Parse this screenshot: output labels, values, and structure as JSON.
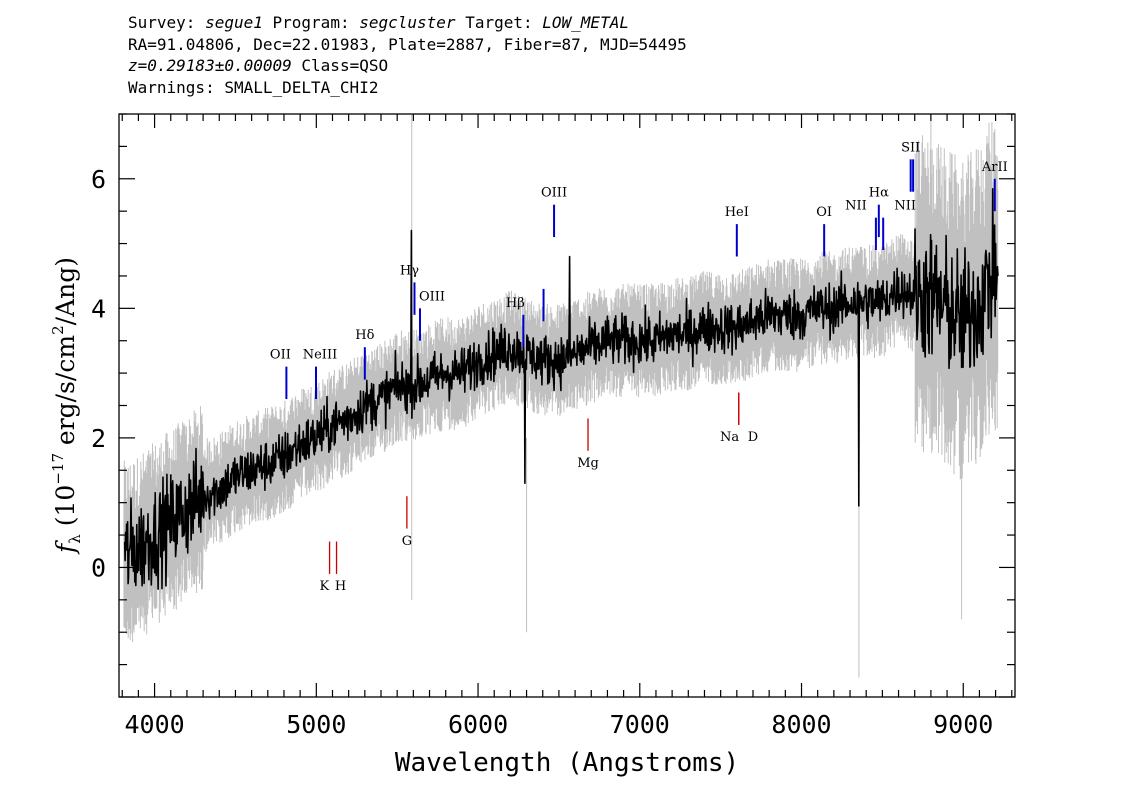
{
  "header": {
    "line1": {
      "survey_label": "Survey:",
      "survey": "segue1",
      "program_label": "Program:",
      "program": "segcluster",
      "target_label": "Target:",
      "target": "LOW_METAL"
    },
    "line2": "RA=91.04806, Dec=22.01983, Plate=2887, Fiber=87, MJD=54495",
    "line3": {
      "z": "z=0.29183±0.00009",
      "class": "Class=QSO"
    },
    "line4": "Warnings: SMALL_DELTA_CHI2"
  },
  "chart_data": {
    "type": "line",
    "xlabel": "Wavelength (Angstroms)",
    "ylabel": "f_λ (10^-17 erg/s/cm²/Ang)",
    "xlim": [
      3780,
      9320
    ],
    "ylim": [
      -2.0,
      7.0
    ],
    "xticks": [
      "4000",
      "5000",
      "6000",
      "7000",
      "8000",
      "9000"
    ],
    "yticks": [
      "0",
      "2",
      "4",
      "6"
    ],
    "grid": false,
    "colors": {
      "flux": "#000000",
      "error": "#c0c0c0",
      "emission": "#0000cc",
      "absorption": "#cc0000"
    },
    "series": [
      {
        "smoothed_flux_anchors_x": [
          3800,
          3900,
          4000,
          4100,
          4200,
          4300,
          4400,
          4500,
          4600,
          4700,
          4800,
          4900,
          5000,
          5100,
          5200,
          5300,
          5400,
          5500,
          5600,
          5700,
          5800,
          5900,
          6000,
          6100,
          6200,
          6300,
          6400,
          6500,
          6600,
          6700,
          6800,
          6900,
          7000,
          7100,
          7200,
          7300,
          7400,
          7500,
          7600,
          7700,
          7800,
          7900,
          8000,
          8100,
          8200,
          8300,
          8400,
          8500,
          8600,
          8700,
          8800,
          8900,
          9000,
          9100,
          9200
        ],
        "smoothed_flux_anchors_y": [
          0.2,
          0.3,
          0.5,
          0.7,
          0.9,
          1.1,
          1.2,
          1.4,
          1.5,
          1.6,
          1.7,
          1.9,
          2.0,
          2.2,
          2.3,
          2.5,
          2.6,
          2.8,
          2.8,
          2.9,
          3.0,
          3.0,
          3.2,
          3.3,
          3.4,
          3.3,
          3.2,
          3.2,
          3.3,
          3.4,
          3.5,
          3.5,
          3.5,
          3.5,
          3.6,
          3.6,
          3.7,
          3.7,
          3.7,
          3.8,
          3.9,
          3.9,
          3.9,
          4.0,
          4.0,
          4.1,
          4.1,
          4.1,
          4.3,
          4.2,
          4.2,
          4.0,
          3.8,
          4.1,
          4.6
        ]
      }
    ],
    "emission_lines": [
      {
        "label": "OII",
        "x": 4815,
        "y1": 2.6,
        "y2": 3.1
      },
      {
        "label": "NeIII",
        "x": 4998,
        "y1": 2.6,
        "y2": 3.1
      },
      {
        "label": "Hδ",
        "x": 5300,
        "y1": 2.9,
        "y2": 3.4
      },
      {
        "label": "Hγ",
        "x": 5607,
        "y1": 3.9,
        "y2": 4.4
      },
      {
        "label": "OIII",
        "x": 5641,
        "y1": 3.5,
        "y2": 4.0
      },
      {
        "label": "Hβ",
        "x": 6280,
        "y1": 3.4,
        "y2": 3.9
      },
      {
        "label": "",
        "x": 6405,
        "y1": 3.8,
        "y2": 4.3
      },
      {
        "label": "OIII",
        "x": 6470,
        "y1": 5.1,
        "y2": 5.6
      },
      {
        "label": "HeI",
        "x": 7600,
        "y1": 4.8,
        "y2": 5.3
      },
      {
        "label": "OI",
        "x": 8140,
        "y1": 4.8,
        "y2": 5.3
      },
      {
        "label": "NII",
        "x": 8460,
        "y1": 4.9,
        "y2": 5.4
      },
      {
        "label": "Hα",
        "x": 8478,
        "y1": 5.1,
        "y2": 5.6
      },
      {
        "label": "NII",
        "x": 8505,
        "y1": 4.9,
        "y2": 5.4
      },
      {
        "label": "SII",
        "x": 8675,
        "y1": 5.8,
        "y2": 6.3
      },
      {
        "label": "",
        "x": 8690,
        "y1": 5.8,
        "y2": 6.3
      },
      {
        "label": "ArII",
        "x": 9195,
        "y1": 5.5,
        "y2": 6.0
      }
    ],
    "absorption_lines": [
      {
        "label": "K",
        "x": 5082,
        "y1": -0.1,
        "y2": 0.4
      },
      {
        "label": "H",
        "x": 5125,
        "y1": -0.1,
        "y2": 0.4
      },
      {
        "label": "G",
        "x": 5560,
        "y1": 0.6,
        "y2": 1.1
      },
      {
        "label": "Mg",
        "x": 6680,
        "y1": 1.8,
        "y2": 2.3
      },
      {
        "label": "Na",
        "x": 7612,
        "y1": 2.2,
        "y2": 2.7
      },
      {
        "label": "D",
        "x": 7612,
        "y1": 2.2,
        "y2": 2.7
      }
    ],
    "absorption_label_positions": [
      {
        "label": "K",
        "x": 5050,
        "y": -0.35
      },
      {
        "label": "H",
        "x": 5150,
        "y": -0.35
      },
      {
        "label": "G",
        "x": 5560,
        "y": 0.35
      },
      {
        "label": "Mg",
        "x": 6680,
        "y": 1.55
      },
      {
        "label": "Na",
        "x": 7555,
        "y": 1.95
      },
      {
        "label": "D",
        "x": 7700,
        "y": 1.95
      }
    ]
  }
}
